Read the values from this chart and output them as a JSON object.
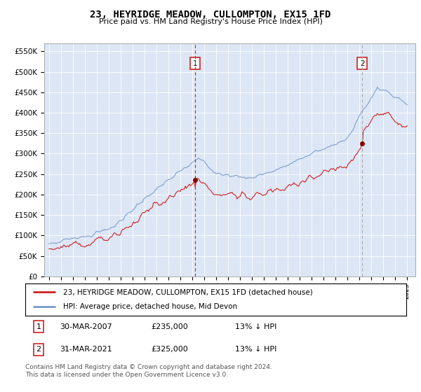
{
  "title": "23, HEYRIDGE MEADOW, CULLOMPTON, EX15 1FD",
  "subtitle": "Price paid vs. HM Land Registry's House Price Index (HPI)",
  "plot_bg_color": "#dce6f5",
  "ylim": [
    0,
    570000
  ],
  "yticks": [
    0,
    50000,
    100000,
    150000,
    200000,
    250000,
    300000,
    350000,
    400000,
    450000,
    500000,
    550000
  ],
  "ytick_labels": [
    "£0",
    "£50K",
    "£100K",
    "£150K",
    "£200K",
    "£250K",
    "£300K",
    "£350K",
    "£400K",
    "£450K",
    "£500K",
    "£550K"
  ],
  "hpi_color": "#7799cc",
  "sold_color": "#cc2222",
  "marker1_date": 2007.24,
  "marker1_price": 235000,
  "marker1_text": "30-MAR-2007",
  "marker1_pct": "13% ↓ HPI",
  "marker2_date": 2021.24,
  "marker2_price": 325000,
  "marker2_text": "31-MAR-2021",
  "marker2_pct": "13% ↓ HPI",
  "legend_line1": "23, HEYRIDGE MEADOW, CULLOMPTON, EX15 1FD (detached house)",
  "legend_line2": "HPI: Average price, detached house, Mid Devon",
  "footer1": "Contains HM Land Registry data © Crown copyright and database right 2024.",
  "footer2": "This data is licensed under the Open Government Licence v3.0."
}
